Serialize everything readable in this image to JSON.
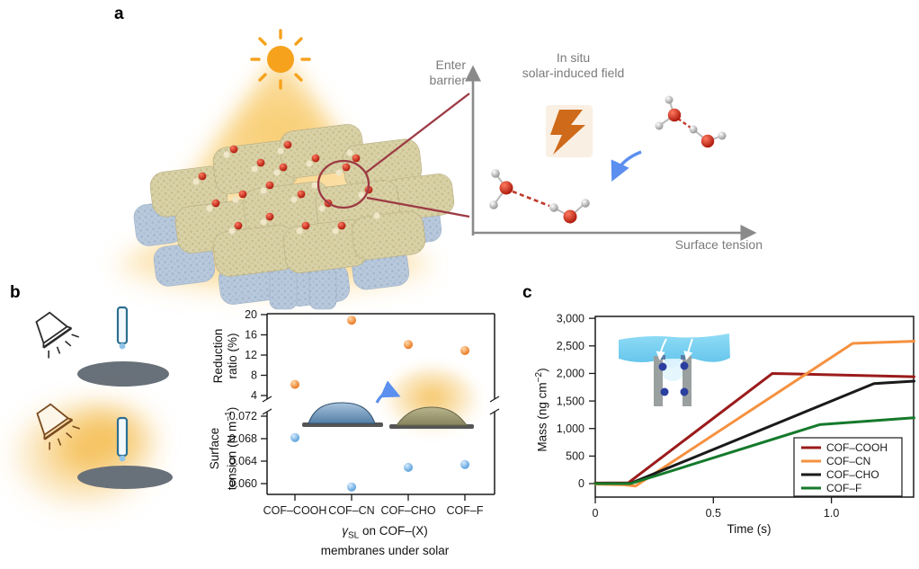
{
  "panels": {
    "a": {
      "label": "a",
      "concept_plot": {
        "ylabel": [
          "Enter",
          "barrier"
        ],
        "xlabel": "Surface tension",
        "annotation": [
          "In situ",
          "solar-induced field"
        ]
      },
      "illustrations": [
        "sun",
        "solar-glow",
        "cof-membrane-with-water",
        "magnifier-circle",
        "lightning-bolt",
        "water-dimer-strong",
        "water-dimer-weak",
        "blue-arrow"
      ]
    },
    "b": {
      "label": "b",
      "ylabel_top": [
        "Reduction",
        "ratio (%)"
      ],
      "ylabel_bottom_l1": "Surface",
      "ylabel_bottom_pre": "tension (N m",
      "ylabel_bottom_sup": "−1",
      "ylabel_bottom_post": ")",
      "xtitle_gamma": "γ",
      "xtitle_sub": "SL",
      "xtitle_rest": " on COF–(X)",
      "xtitle_line2": "membranes under solar",
      "illustrations": [
        "lamp-off",
        "dosing-needle",
        "membrane-disc",
        "lamp-on-with-glow",
        "sessile-droplet-dark",
        "sessile-droplet-solar"
      ]
    },
    "c": {
      "label": "c",
      "ylabel_pre": "Mass (ng cm",
      "ylabel_sup": "−2",
      "ylabel_post": ")",
      "xlabel": "Time (s)",
      "illustrations": [
        "water-film-inset",
        "pillars",
        "water-molecules-entering"
      ]
    }
  },
  "chart_data": [
    {
      "panel": "b",
      "type": "scatter",
      "broken_y_axis": true,
      "categories": [
        "COF–COOH",
        "COF–CN",
        "COF–CHO",
        "COF–F"
      ],
      "top_axis": {
        "label": "Reduction ratio (%)",
        "range": [
          4,
          20
        ],
        "ticks": [
          {
            "v": 4,
            "label": "4"
          },
          {
            "v": 8,
            "label": "8"
          },
          {
            "v": 12,
            "label": "12"
          },
          {
            "v": 16,
            "label": "16"
          },
          {
            "v": 20,
            "label": "20"
          }
        ]
      },
      "bottom_axis": {
        "label": "Surface tension (N m−1)",
        "range": [
          0.058,
          0.073
        ],
        "ticks": [
          {
            "v": 0.06,
            "label": "0.060"
          },
          {
            "v": 0.064,
            "label": "0.064"
          },
          {
            "v": 0.068,
            "label": "0.068"
          },
          {
            "v": 0.072,
            "label": "0.072"
          }
        ]
      },
      "series": [
        {
          "name": "Reduction ratio (%)",
          "axis": "top",
          "color": "#ee7f2c",
          "values": [
            6.2,
            18.9,
            14.1,
            12.9
          ]
        },
        {
          "name": "Surface tension (N m−1)",
          "axis": "bottom",
          "color": "#74b3e3",
          "values": [
            0.0682,
            0.0594,
            0.0629,
            0.0634
          ]
        }
      ],
      "xlabel": "γSL on COF–(X) membranes under solar",
      "grid": false
    },
    {
      "panel": "c",
      "type": "line",
      "xlabel": "Time (s)",
      "ylabel": "Mass (ng cm−2)",
      "xlim": [
        0,
        1.35
      ],
      "ylim": [
        -245,
        3035
      ],
      "x_ticks": [
        {
          "v": 0,
          "label": "0"
        },
        {
          "v": 0.5,
          "label": "0.5"
        },
        {
          "v": 1.0,
          "label": "1.0"
        }
      ],
      "y_ticks": [
        {
          "v": 0,
          "label": "0"
        },
        {
          "v": 500,
          "label": "500"
        },
        {
          "v": 1000,
          "label": "1,000"
        },
        {
          "v": 1500,
          "label": "1,500"
        },
        {
          "v": 2000,
          "label": "2,000"
        },
        {
          "v": 2500,
          "label": "2,500"
        },
        {
          "v": 3000,
          "label": "3,000"
        }
      ],
      "series": [
        {
          "name": "COF–COOH",
          "color": "#9b1b1b",
          "points": [
            [
              0,
              10
            ],
            [
              0.14,
              15
            ],
            [
              0.75,
              2000
            ],
            [
              1.35,
              1940
            ]
          ]
        },
        {
          "name": "COF–CN",
          "color": "#f5913f",
          "points": [
            [
              0,
              -10
            ],
            [
              0.12,
              -20
            ],
            [
              0.17,
              -45
            ],
            [
              1.09,
              2545
            ],
            [
              1.35,
              2585
            ]
          ]
        },
        {
          "name": "COF–CHO",
          "color": "#1a1a1a",
          "points": [
            [
              0,
              5
            ],
            [
              0.15,
              5
            ],
            [
              1.18,
              1815
            ],
            [
              1.35,
              1860
            ]
          ]
        },
        {
          "name": "COF–F",
          "color": "#157a2b",
          "points": [
            [
              0,
              0
            ],
            [
              0.15,
              0
            ],
            [
              0.95,
              1070
            ],
            [
              1.35,
              1195
            ]
          ]
        }
      ],
      "legend_position": "bottom-right",
      "grid": false
    }
  ],
  "colors": {
    "sun_orange": "#f6a21d",
    "glow_yellow": "#f7c458",
    "callout_red": "#9d3b44",
    "water_oxygen_red": "#c2271a",
    "axis_gray": "#8a8a8a",
    "text_gray": "#7b7b7b",
    "ink": "#1a1a1a",
    "point_orange": "#ee7f2c",
    "point_blue": "#74b3e3"
  }
}
